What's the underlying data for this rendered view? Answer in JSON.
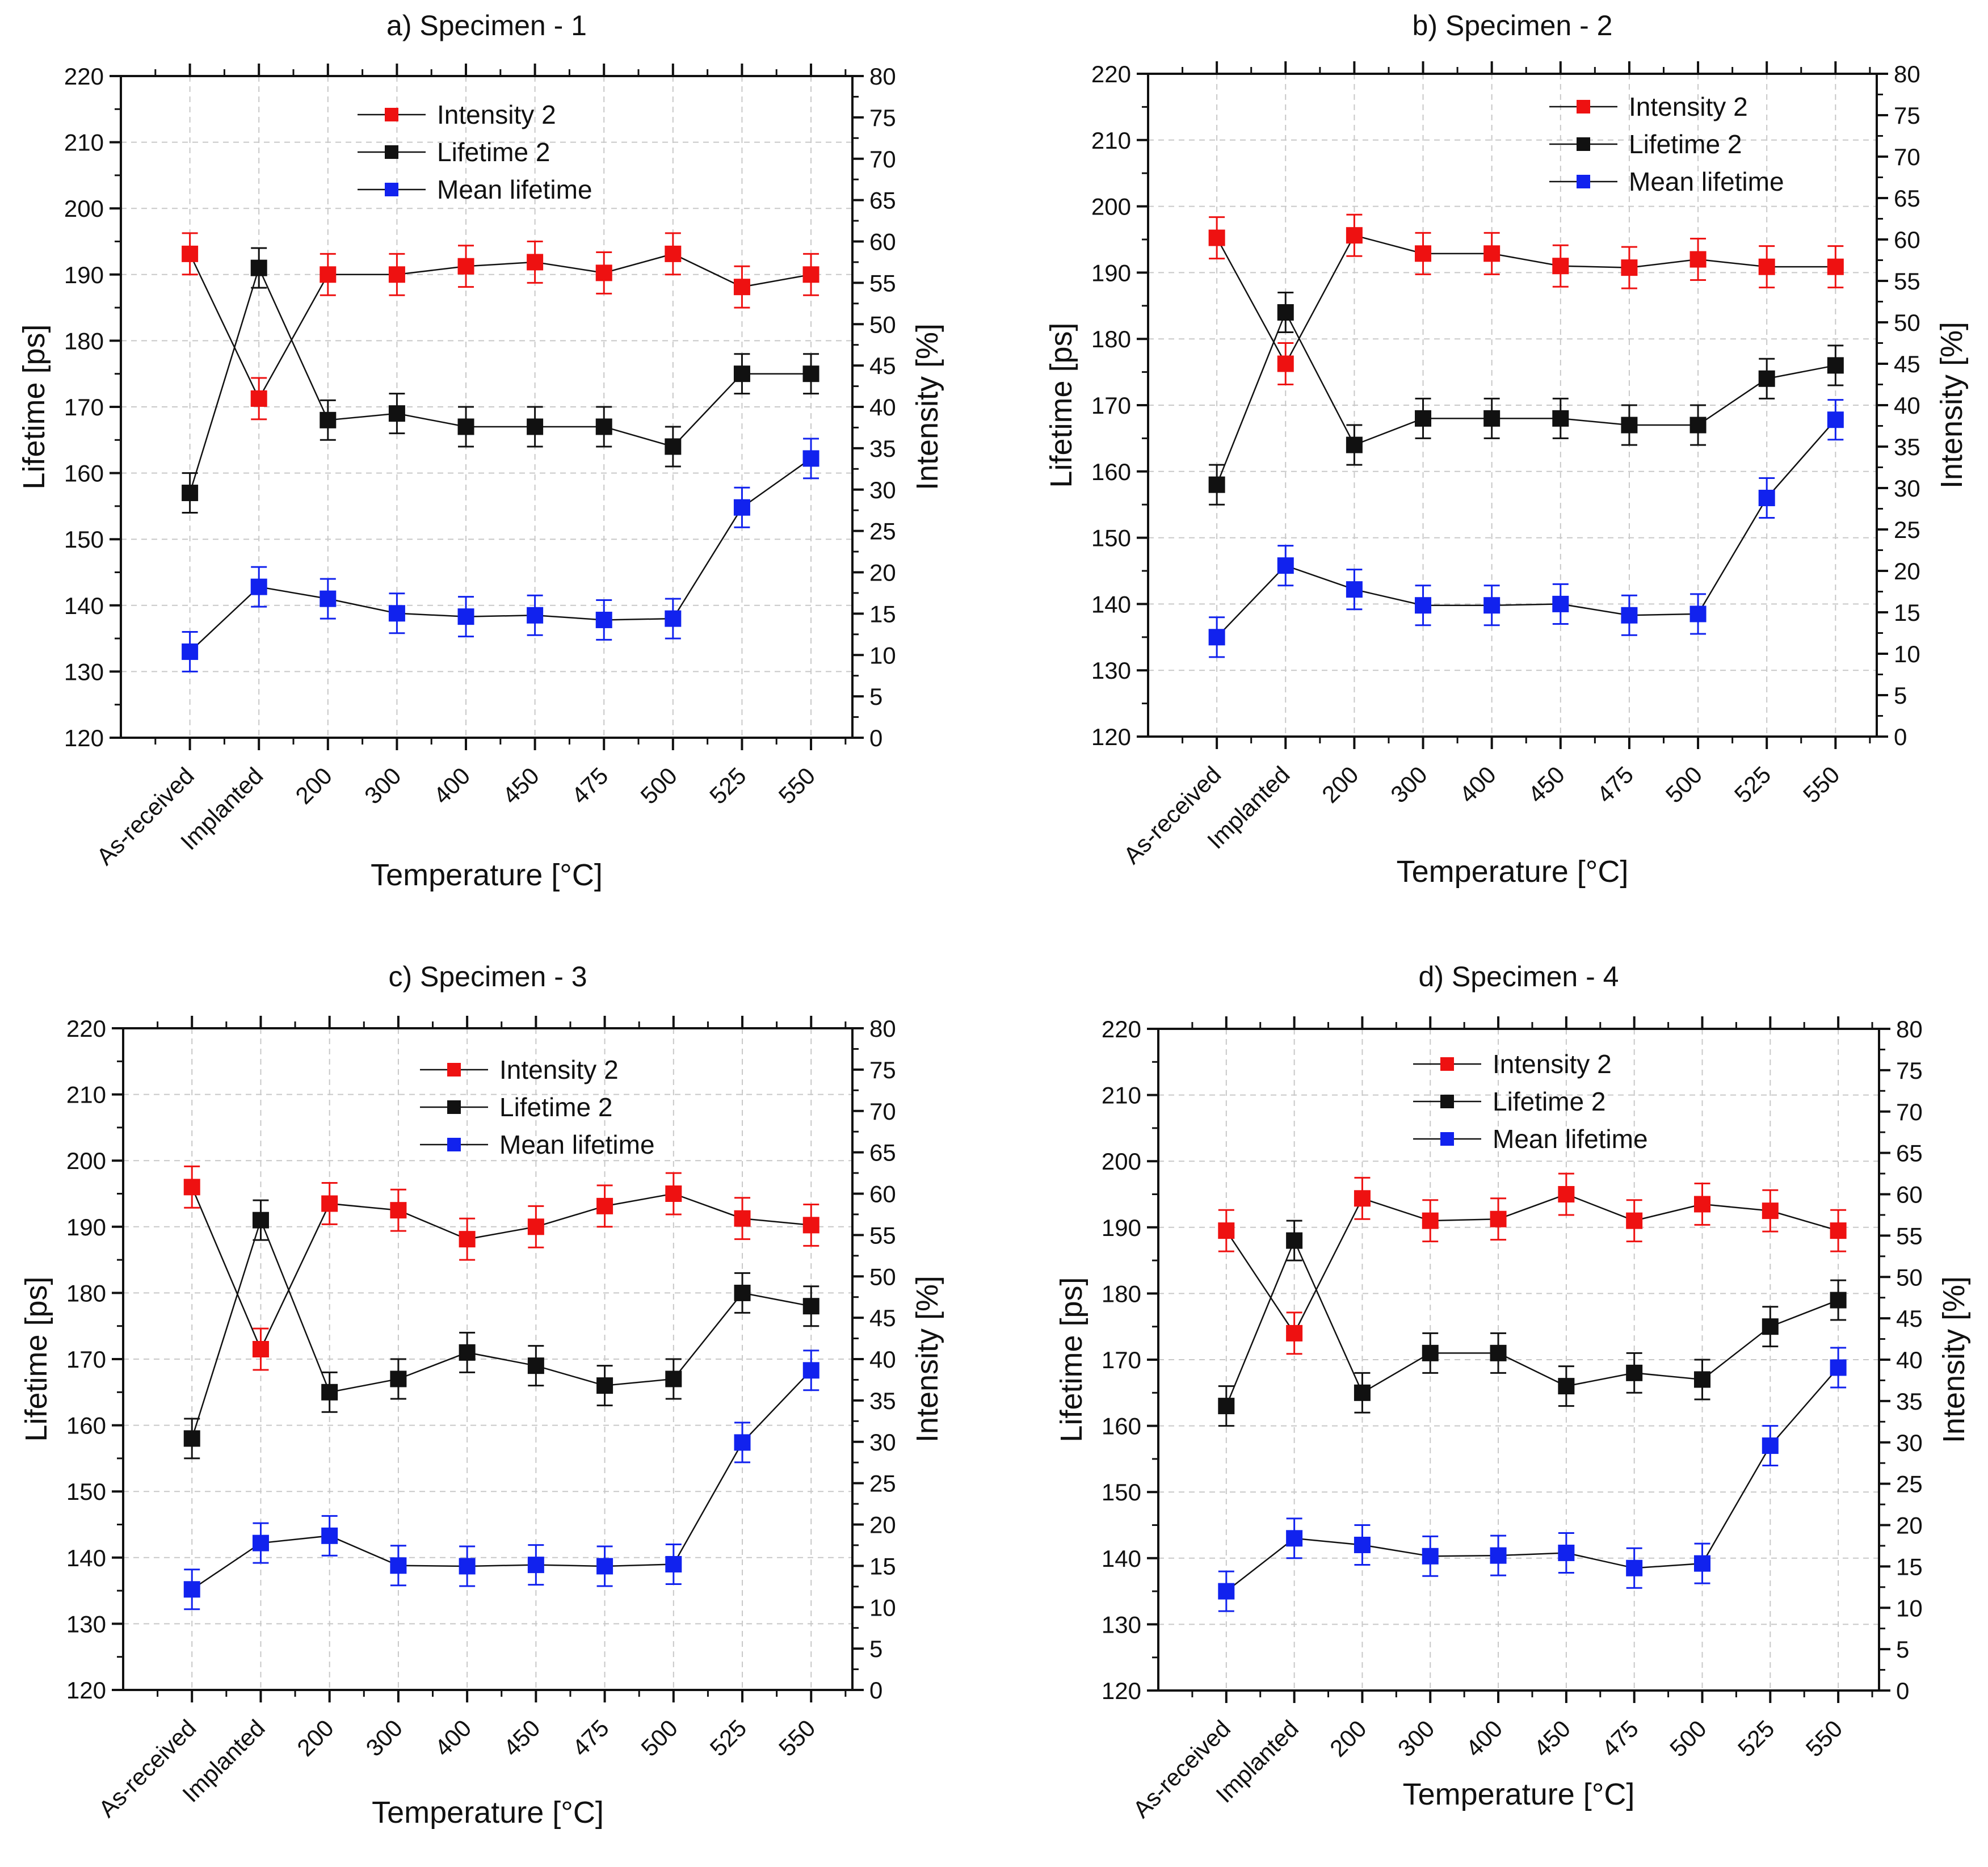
{
  "chart_data": [
    {
      "type": "line",
      "title": "a) Specimen - 1",
      "xlabel": "Temperature [°C]",
      "ylabel": "Lifetime [ps]",
      "y2label": "Intensity [%]",
      "categories": [
        "As-received",
        "Implanted",
        "200",
        "300",
        "400",
        "450",
        "475",
        "500",
        "525",
        "550"
      ],
      "ylim": [
        120,
        220
      ],
      "y2lim": [
        0,
        80
      ],
      "yticks": [
        120,
        130,
        140,
        150,
        160,
        170,
        180,
        190,
        200,
        210,
        220
      ],
      "y2ticks": [
        0,
        5,
        10,
        15,
        20,
        25,
        30,
        35,
        40,
        45,
        50,
        55,
        60,
        65,
        70,
        75,
        80
      ],
      "grid": true,
      "legend": [
        "Intensity 2",
        "Lifetime 2",
        "Mean lifetime"
      ],
      "series": [
        {
          "name": "Intensity 2",
          "axis": "right",
          "color": "#ee1111",
          "values": [
            58.5,
            41.0,
            56.0,
            56.0,
            57.0,
            57.5,
            56.2,
            58.5,
            54.5,
            56.0
          ],
          "error": 2.5
        },
        {
          "name": "Lifetime 2",
          "axis": "left",
          "color": "#111111",
          "values": [
            157,
            191,
            168,
            169,
            167,
            167,
            167,
            164,
            175,
            175
          ],
          "error": 3
        },
        {
          "name": "Mean lifetime",
          "axis": "left",
          "color": "#1122ee",
          "values": [
            133,
            142.8,
            141,
            138.8,
            138.3,
            138.5,
            137.8,
            138,
            154.8,
            162.2
          ],
          "error": 3
        }
      ]
    },
    {
      "type": "line",
      "title": "b) Specimen - 2",
      "xlabel": "Temperature [°C]",
      "ylabel": "Lifetime  [ps]",
      "y2label": "Intensity  [%]",
      "categories": [
        "As-received",
        "Implanted",
        "200",
        "300",
        "400",
        "450",
        "475",
        "500",
        "525",
        "550"
      ],
      "ylim": [
        120,
        220
      ],
      "y2lim": [
        0,
        80
      ],
      "yticks": [
        120,
        130,
        140,
        150,
        160,
        170,
        180,
        190,
        200,
        210,
        220
      ],
      "y2ticks": [
        0,
        5,
        10,
        15,
        20,
        25,
        30,
        35,
        40,
        45,
        50,
        55,
        60,
        65,
        70,
        75,
        80
      ],
      "grid": true,
      "legend": [
        "Intensity 2",
        "Lifetime 2",
        "Mean lifetime"
      ],
      "series": [
        {
          "name": "Intensity 2",
          "axis": "right",
          "color": "#ee1111",
          "values": [
            60.2,
            45.0,
            60.5,
            58.3,
            58.3,
            56.8,
            56.6,
            57.6,
            56.7,
            56.7
          ],
          "error": 2.5
        },
        {
          "name": "Lifetime 2",
          "axis": "left",
          "color": "#111111",
          "values": [
            158,
            184,
            164,
            168,
            168,
            168,
            167,
            167,
            174,
            176
          ],
          "error": 3
        },
        {
          "name": "Mean lifetime",
          "axis": "left",
          "color": "#1122ee",
          "values": [
            135,
            145.8,
            142.2,
            139.8,
            139.8,
            140,
            138.3,
            138.5,
            156,
            167.8
          ],
          "error": 3
        }
      ]
    },
    {
      "type": "line",
      "title": "c) Specimen - 3",
      "xlabel": "Temperature [°C]",
      "ylabel": "Lifetime [ps]",
      "y2label": "Intensity [%]",
      "categories": [
        "As-received",
        "Implanted",
        "200",
        "300",
        "400",
        "450",
        "475",
        "500",
        "525",
        "550"
      ],
      "ylim": [
        120,
        220
      ],
      "y2lim": [
        0,
        80
      ],
      "yticks": [
        120,
        130,
        140,
        150,
        160,
        170,
        180,
        190,
        200,
        210,
        220
      ],
      "y2ticks": [
        0,
        5,
        10,
        15,
        20,
        25,
        30,
        35,
        40,
        45,
        50,
        55,
        60,
        65,
        70,
        75,
        80
      ],
      "grid": true,
      "legend": [
        "Intensity 2",
        "Lifetime 2",
        "Mean lifetime"
      ],
      "series": [
        {
          "name": "Intensity 2",
          "axis": "right",
          "color": "#ee1111",
          "values": [
            60.8,
            41.2,
            58.8,
            58.0,
            54.5,
            56.0,
            58.5,
            60.0,
            57.0,
            56.2
          ],
          "error": 2.5
        },
        {
          "name": "Lifetime 2",
          "axis": "left",
          "color": "#111111",
          "values": [
            158,
            191,
            165,
            167,
            171,
            169,
            166,
            167,
            180,
            178
          ],
          "error": 3
        },
        {
          "name": "Mean lifetime",
          "axis": "left",
          "color": "#1122ee",
          "values": [
            135.2,
            142.2,
            143.3,
            138.8,
            138.7,
            138.9,
            138.7,
            139,
            157.4,
            168.3
          ],
          "error": 3
        }
      ]
    },
    {
      "type": "line",
      "title": "d) Specimen - 4",
      "xlabel": "Temperature [°C]",
      "ylabel": "Lifetime  [ps]",
      "y2label": "Intensity  [%]",
      "categories": [
        "As-received",
        "Implanted",
        "200",
        "300",
        "400",
        "450",
        "475",
        "500",
        "525",
        "550"
      ],
      "ylim": [
        120,
        220
      ],
      "y2lim": [
        0,
        80
      ],
      "yticks": [
        120,
        130,
        140,
        150,
        160,
        170,
        180,
        190,
        200,
        210,
        220
      ],
      "y2ticks": [
        0,
        5,
        10,
        15,
        20,
        25,
        30,
        35,
        40,
        45,
        50,
        55,
        60,
        65,
        70,
        75,
        80
      ],
      "grid": true,
      "legend": [
        "Intensity 2",
        "Lifetime 2",
        "Mean lifetime"
      ],
      "series": [
        {
          "name": "Intensity 2",
          "axis": "right",
          "color": "#ee1111",
          "values": [
            55.6,
            43.2,
            59.5,
            56.8,
            57.0,
            60.0,
            56.8,
            58.8,
            58.0,
            55.6
          ],
          "error": 2.5
        },
        {
          "name": "Lifetime 2",
          "axis": "left",
          "color": "#111111",
          "values": [
            163,
            188,
            165,
            171,
            171,
            166,
            168,
            167,
            175,
            179
          ],
          "error": 3
        },
        {
          "name": "Mean lifetime",
          "axis": "left",
          "color": "#1122ee",
          "values": [
            135,
            143,
            142,
            140.3,
            140.4,
            140.8,
            138.5,
            139.2,
            157,
            168.8
          ],
          "error": 3
        }
      ]
    }
  ]
}
